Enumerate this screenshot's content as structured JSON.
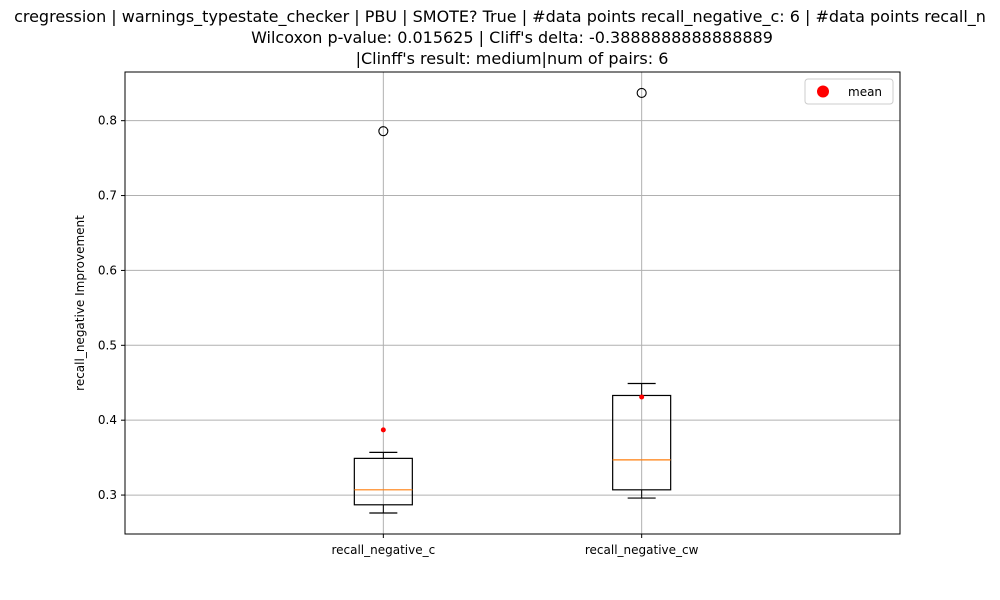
{
  "title": {
    "line1": "cregression | warnings_typestate_checker | PBU | SMOTE? True | #data points recall_negative_c: 6 | #data points recall_n",
    "line2": "Wilcoxon p-value: 0.015625 | Cliff's delta: -0.3888888888888889",
    "line3": "|Clinff's result: medium|num of pairs: 6"
  },
  "chart_data": {
    "type": "boxplot",
    "ylabel": "recall_negative Improvement",
    "xlabel": "",
    "ylim": [
      0.248,
      0.865
    ],
    "yticks": [
      0.3,
      0.4,
      0.5,
      0.6,
      0.7,
      0.8
    ],
    "grid": true,
    "legend": {
      "position": "top-right",
      "entries": [
        {
          "label": "mean",
          "color": "#ff0000",
          "marker": "circle"
        }
      ]
    },
    "categories": [
      "recall_negative_c",
      "recall_negative_cw"
    ],
    "boxes": [
      {
        "category": "recall_negative_c",
        "whisker_low": 0.276,
        "q1": 0.287,
        "median": 0.307,
        "q3": 0.349,
        "whisker_high": 0.357,
        "mean": 0.387,
        "outliers": [
          0.786
        ]
      },
      {
        "category": "recall_negative_cw",
        "whisker_low": 0.296,
        "q1": 0.307,
        "median": 0.347,
        "q3": 0.433,
        "whisker_high": 0.449,
        "mean": 0.431,
        "outliers": [
          0.837
        ]
      }
    ],
    "colors": {
      "box": "#000000",
      "median": "#ff7f0e",
      "mean": "#ff0000",
      "grid": "#b0b0b0"
    }
  }
}
